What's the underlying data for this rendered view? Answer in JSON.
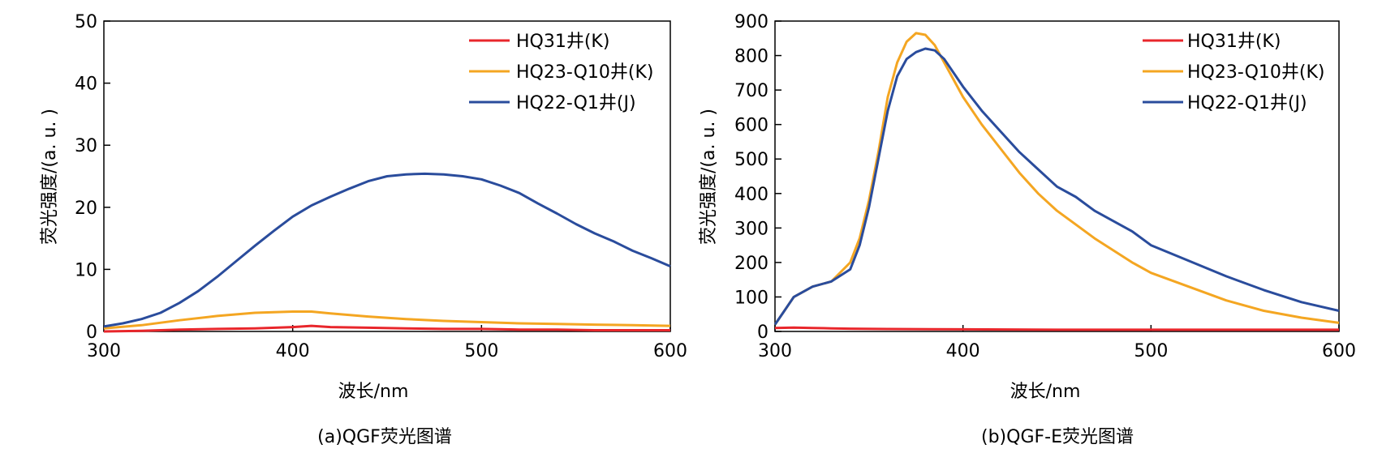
{
  "chart_data": [
    {
      "type": "line",
      "caption": "(a)QGF荧光图谱",
      "xlabel": "波长/nm",
      "ylabel": "荧光强度/(a. u. )",
      "xlim": [
        300,
        600
      ],
      "ylim": [
        0,
        50
      ],
      "xticks": [
        300,
        400,
        500,
        600
      ],
      "yticks": [
        0,
        10,
        20,
        30,
        40,
        50
      ],
      "legend_position": "top-right",
      "grid": false,
      "series": [
        {
          "name": "HQ31井(K)",
          "color": "#e8262b",
          "x": [
            300,
            320,
            340,
            360,
            380,
            400,
            410,
            420,
            440,
            460,
            480,
            500,
            520,
            540,
            560,
            580,
            600
          ],
          "y": [
            0.0,
            0.1,
            0.3,
            0.4,
            0.5,
            0.7,
            0.9,
            0.7,
            0.6,
            0.5,
            0.4,
            0.4,
            0.3,
            0.3,
            0.2,
            0.2,
            0.2
          ]
        },
        {
          "name": "HQ23-Q10井(K)",
          "color": "#f4a622",
          "x": [
            300,
            320,
            340,
            360,
            380,
            400,
            410,
            420,
            440,
            460,
            480,
            500,
            520,
            540,
            560,
            580,
            600
          ],
          "y": [
            0.5,
            1.0,
            1.8,
            2.5,
            3.0,
            3.2,
            3.2,
            2.9,
            2.4,
            2.0,
            1.7,
            1.5,
            1.3,
            1.2,
            1.1,
            1.0,
            0.9
          ]
        },
        {
          "name": "HQ22-Q1井(J)",
          "color": "#2a4c9c",
          "x": [
            300,
            310,
            320,
            330,
            340,
            350,
            360,
            370,
            380,
            390,
            400,
            410,
            420,
            430,
            440,
            450,
            460,
            470,
            480,
            490,
            500,
            510,
            520,
            530,
            540,
            550,
            560,
            570,
            580,
            590,
            600
          ],
          "y": [
            0.8,
            1.3,
            2.0,
            3.0,
            4.6,
            6.5,
            8.8,
            11.3,
            13.8,
            16.2,
            18.5,
            20.3,
            21.7,
            23.0,
            24.2,
            25.0,
            25.3,
            25.4,
            25.3,
            25.0,
            24.5,
            23.5,
            22.3,
            20.6,
            19.0,
            17.3,
            15.8,
            14.5,
            13.0,
            11.8,
            10.5
          ]
        }
      ]
    },
    {
      "type": "line",
      "caption": "(b)QGF-E荧光图谱",
      "xlabel": "波长/nm",
      "ylabel": "荧光强度/(a. u. )",
      "xlim": [
        300,
        600
      ],
      "ylim": [
        0,
        900
      ],
      "xticks": [
        300,
        400,
        500,
        600
      ],
      "yticks": [
        0,
        100,
        200,
        300,
        400,
        500,
        600,
        700,
        800,
        900
      ],
      "legend_position": "top-right",
      "grid": false,
      "series": [
        {
          "name": "HQ31井(K)",
          "color": "#e8262b",
          "x": [
            300,
            310,
            320,
            330,
            340,
            360,
            400,
            450,
            500,
            550,
            600
          ],
          "y": [
            10,
            11,
            10,
            9,
            8,
            7,
            6,
            5,
            5,
            5,
            5
          ]
        },
        {
          "name": "HQ23-Q10井(K)",
          "color": "#f4a622",
          "x": [
            300,
            305,
            310,
            320,
            330,
            340,
            345,
            350,
            355,
            360,
            365,
            370,
            375,
            380,
            385,
            390,
            400,
            410,
            420,
            430,
            440,
            450,
            460,
            470,
            480,
            490,
            500,
            520,
            540,
            560,
            580,
            600
          ],
          "y": [
            20,
            60,
            100,
            130,
            145,
            200,
            270,
            380,
            520,
            680,
            780,
            840,
            865,
            860,
            830,
            780,
            680,
            600,
            530,
            460,
            400,
            350,
            310,
            270,
            235,
            200,
            170,
            130,
            90,
            60,
            40,
            25
          ]
        },
        {
          "name": "HQ22-Q1井(J)",
          "color": "#2a4c9c",
          "x": [
            300,
            305,
            310,
            320,
            330,
            340,
            345,
            350,
            355,
            360,
            365,
            370,
            375,
            380,
            385,
            390,
            400,
            410,
            420,
            430,
            440,
            450,
            460,
            470,
            480,
            490,
            500,
            520,
            540,
            560,
            580,
            600
          ],
          "y": [
            20,
            60,
            100,
            130,
            145,
            180,
            250,
            360,
            500,
            640,
            740,
            790,
            810,
            820,
            815,
            790,
            710,
            640,
            580,
            520,
            470,
            420,
            390,
            350,
            320,
            290,
            250,
            205,
            160,
            120,
            85,
            60
          ]
        }
      ]
    }
  ]
}
